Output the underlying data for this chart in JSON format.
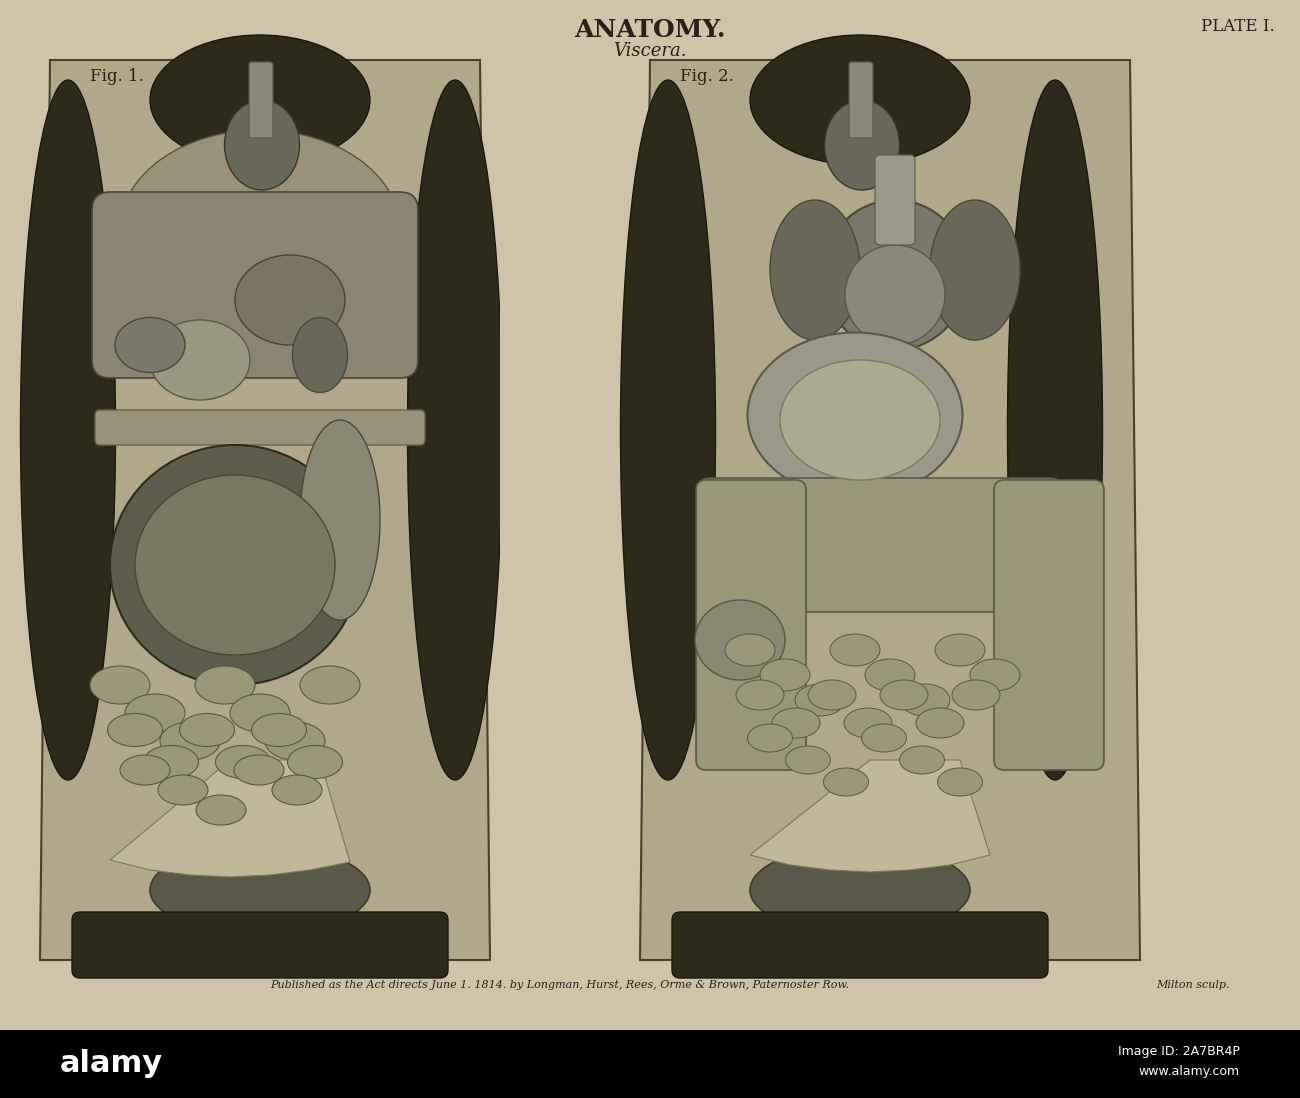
{
  "title": "ANATOMY.",
  "subtitle": "Viscera.",
  "plate": "PLATE I.",
  "fig1_label": "Fig. 1.",
  "fig2_label": "Fig. 2.",
  "publisher_text": "Published as the Act directs June 1. 1814. by Longman, Hurst, Rees, Orme & Brown, Paternoster Row.",
  "engraver_text": "Milton sculp.",
  "title_color": "#2a2018",
  "title_fontsize": 18,
  "subtitle_fontsize": 13,
  "label_fontsize": 12,
  "publisher_fontsize": 8,
  "plate_fontsize": 12,
  "figsize": [
    13.0,
    10.98
  ],
  "dpi": 100,
  "paper_color": "#cfc4a8",
  "dark_color": "#3a3020",
  "mid_color": "#7a7060",
  "light_color": "#a8a080",
  "organ_color": "#8a8068"
}
